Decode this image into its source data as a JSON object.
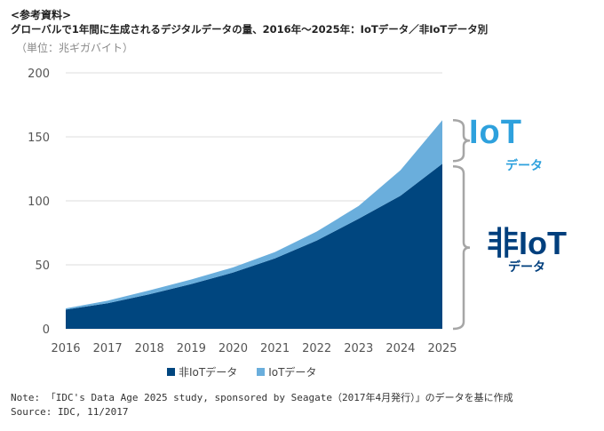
{
  "header": {
    "ref": "<参考資料>",
    "title": "グローバルで1年間に生成されるデジタルデータの量、2016年～2025年：IoTデータ／非IoTデータ別",
    "unit": "（単位：兆ギガバイト）"
  },
  "labels": {
    "iot": "IoT",
    "iot_sub": "データ",
    "noniot": "非IoT",
    "noniot_sub": "データ"
  },
  "note": {
    "line1": "Note: 「IDC's Data Age 2025 study, sponsored by Seagate（2017年4月発行）」のデータを基に作成",
    "line2": "Source: IDC, 11/2017"
  },
  "colors": {
    "noniot": "#00467f",
    "iot": "#6aaedc",
    "grid": "#dcdcdc",
    "brace": "#a6a6a6"
  },
  "chart_data": {
    "type": "area",
    "stacked": true,
    "x": [
      "2016",
      "2017",
      "2018",
      "2019",
      "2020",
      "2021",
      "2022",
      "2023",
      "2024",
      "2025"
    ],
    "ylim": [
      0,
      200
    ],
    "yticks": [
      "0",
      "50",
      "100",
      "150",
      "200"
    ],
    "grid": true,
    "legend": "bottom",
    "series": [
      {
        "name": "非IoTデータ",
        "values": [
          15,
          20,
          27,
          35,
          44,
          55,
          69,
          86,
          104,
          129
        ]
      },
      {
        "name": "IoTデータ",
        "values": [
          1,
          2,
          3,
          3.5,
          4,
          5,
          7,
          10,
          20,
          34
        ]
      }
    ]
  }
}
